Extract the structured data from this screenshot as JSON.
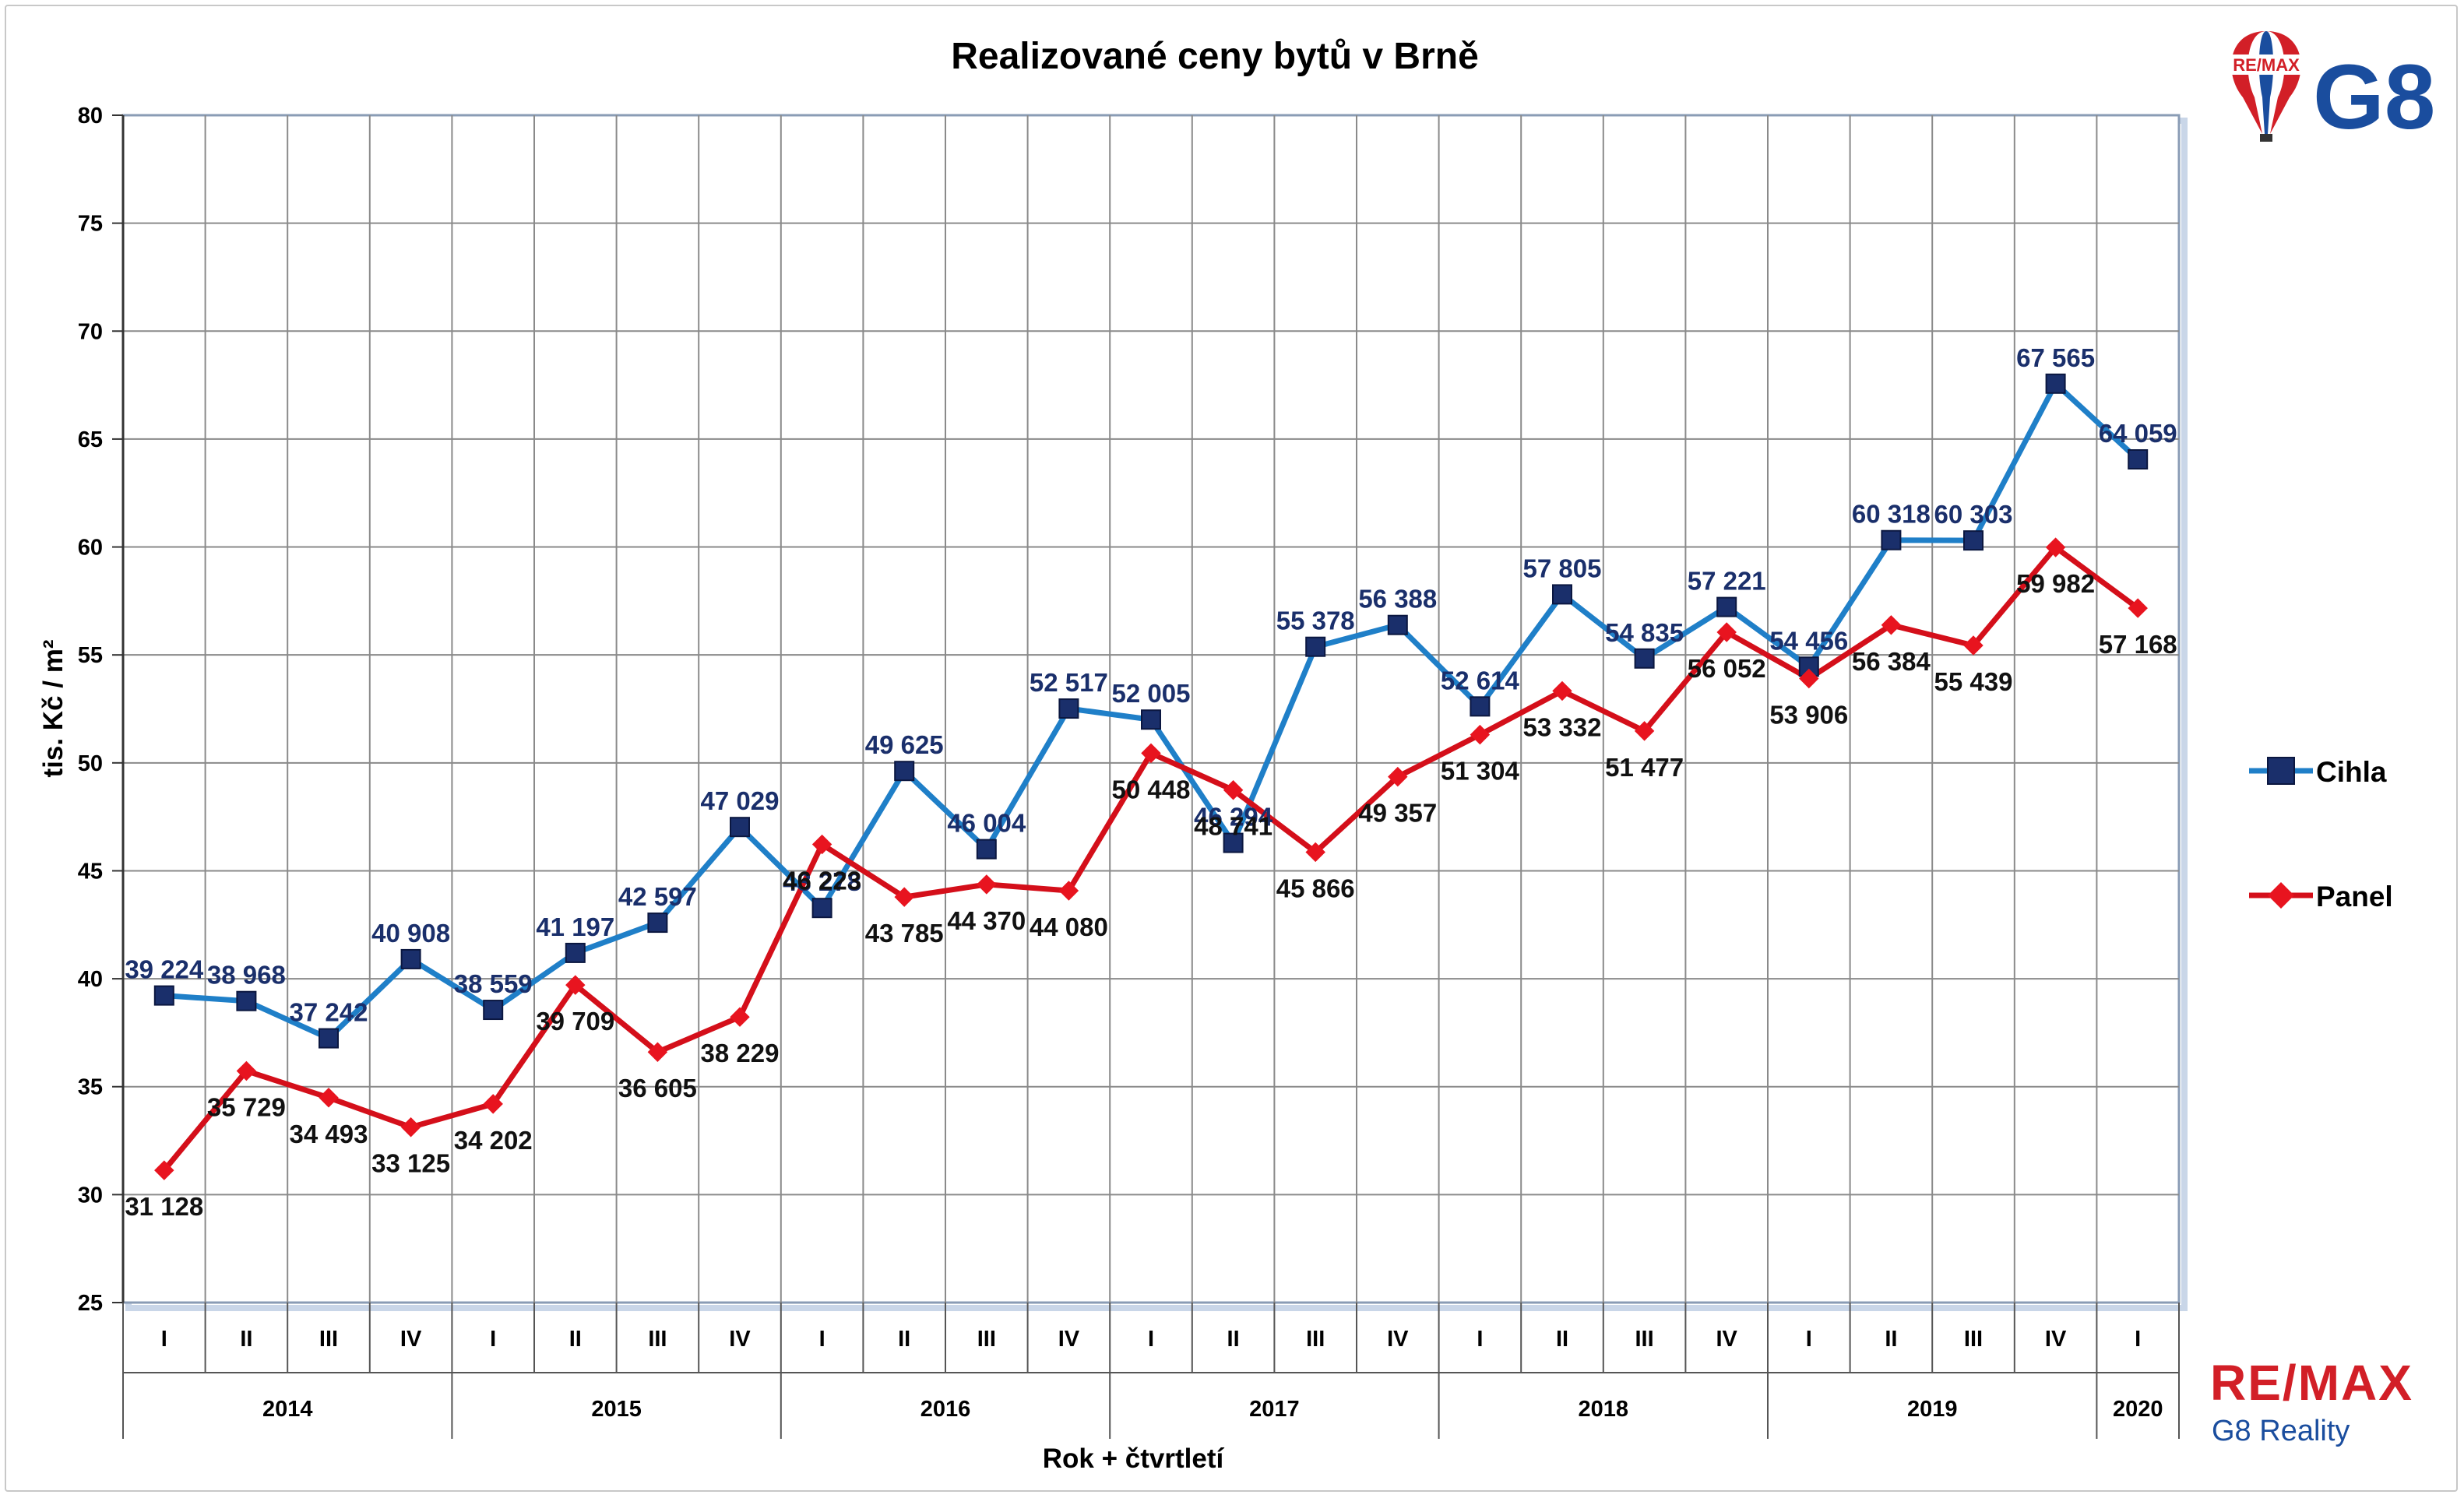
{
  "chart_data": {
    "type": "line",
    "title": "Realizované ceny bytů v Brně",
    "ylabel": "tis. Kč / m²",
    "xlabel": "Rok + čtvrtletí",
    "ylim": [
      25,
      80
    ],
    "yticks": [
      25,
      30,
      35,
      40,
      45,
      50,
      55,
      60,
      65,
      70,
      75,
      80
    ],
    "grid": true,
    "legend_position": "right",
    "quarters": [
      "I",
      "II",
      "III",
      "IV",
      "I",
      "II",
      "III",
      "IV",
      "I",
      "II",
      "III",
      "IV",
      "I",
      "II",
      "III",
      "IV",
      "I",
      "II",
      "III",
      "IV",
      "I",
      "II",
      "III",
      "IV",
      "I"
    ],
    "years": [
      {
        "label": "2014",
        "quarters": 4
      },
      {
        "label": "2015",
        "quarters": 4
      },
      {
        "label": "2016",
        "quarters": 4
      },
      {
        "label": "2017",
        "quarters": 4
      },
      {
        "label": "2018",
        "quarters": 4
      },
      {
        "label": "2019",
        "quarters": 4
      },
      {
        "label": "2020",
        "quarters": 1
      }
    ],
    "series": [
      {
        "name": "Cihla",
        "color": "#1f7fc8",
        "marker": "square",
        "marker_color": "#1a2f6b",
        "values": [
          39.224,
          38.968,
          37.242,
          40.908,
          38.559,
          41.197,
          42.597,
          47.029,
          43.278,
          49.625,
          46.004,
          52.517,
          52.005,
          46.294,
          55.378,
          56.388,
          52.614,
          57.805,
          54.835,
          57.221,
          54.456,
          60.318,
          60.303,
          67.565,
          64.059
        ],
        "labels": [
          "39 224",
          "38 968",
          "37 242",
          "40 908",
          "38 559",
          "41 197",
          "42 597",
          "47 029",
          "43 278",
          "49 625",
          "46 004",
          "52 517",
          "52 005",
          "46 294",
          "55 378",
          "56 388",
          "52 614",
          "57 805",
          "54 835",
          "57 221",
          "54 456",
          "60 318",
          "60 303",
          "67 565",
          "64 059"
        ]
      },
      {
        "name": "Panel",
        "color": "#d40f1a",
        "marker": "diamond",
        "marker_color": "#e8141f",
        "values": [
          31.128,
          35.729,
          34.493,
          33.125,
          34.202,
          39.709,
          36.605,
          38.229,
          46.223,
          43.785,
          44.37,
          44.08,
          50.448,
          48.741,
          45.866,
          49.357,
          51.304,
          53.332,
          51.477,
          56.052,
          53.906,
          56.384,
          55.439,
          59.982,
          57.168
        ],
        "labels": [
          "31 128",
          "35 729",
          "34 493",
          "33 125",
          "34 202",
          "39 709",
          "36 605",
          "38 229",
          "46 223",
          "43 785",
          "44 370",
          "44 080",
          "50 448",
          "48 741",
          "45 866",
          "49 357",
          "51 304",
          "53 332",
          "51 477",
          "56 052",
          "53 906",
          "56 384",
          "55 439",
          "59 982",
          "57 168"
        ]
      }
    ]
  },
  "branding": {
    "remax_logo_text": "RE/MAX",
    "g8_logo_text": "G8",
    "footer_brand": "RE/MAX",
    "footer_sub": "G8 Reality"
  }
}
